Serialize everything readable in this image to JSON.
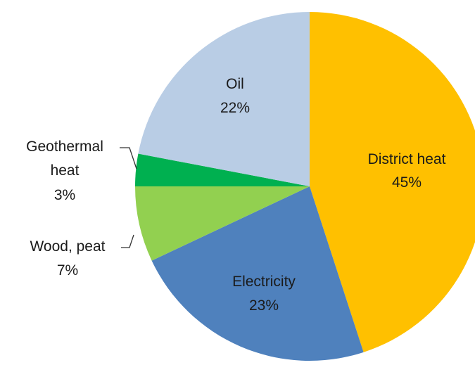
{
  "chart_data": {
    "type": "pie",
    "title": "",
    "start_angle_deg": 0,
    "direction": "clockwise",
    "slices": [
      {
        "label": "District heat",
        "percent_text": "45%",
        "value": 45,
        "color": "#FFC000"
      },
      {
        "label": "Electricity",
        "percent_text": "23%",
        "value": 23,
        "color": "#4F81BD"
      },
      {
        "label_lines": [
          "Wood, peat"
        ],
        "percent_text": "7%",
        "value": 7,
        "color": "#92D050"
      },
      {
        "label_lines": [
          "Geothermal",
          "heat"
        ],
        "percent_text": "3%",
        "value": 3,
        "color": "#00B050"
      },
      {
        "label": "Oil",
        "percent_text": "22%",
        "value": 22,
        "color": "#B9CDE5"
      }
    ]
  }
}
